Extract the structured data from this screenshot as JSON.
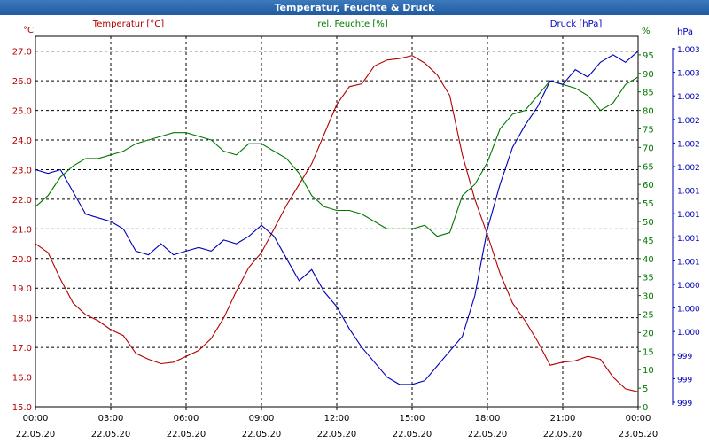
{
  "window": {
    "title": "Temperatur, Feuchte & Druck"
  },
  "colors": {
    "temperature": "#b40000",
    "humidity": "#007800",
    "pressure": "#0000b4",
    "grid": "#000000"
  },
  "chart_data": {
    "type": "line",
    "title": "Temperatur, Feuchte & Druck",
    "x_ticks": [
      {
        "time": "00:00",
        "date": "22.05.20"
      },
      {
        "time": "03:00",
        "date": "22.05.20"
      },
      {
        "time": "06:00",
        "date": "22.05.20"
      },
      {
        "time": "09:00",
        "date": "22.05.20"
      },
      {
        "time": "12:00",
        "date": "22.05.20"
      },
      {
        "time": "15:00",
        "date": "22.05.20"
      },
      {
        "time": "18:00",
        "date": "22.05.20"
      },
      {
        "time": "21:00",
        "date": "22.05.20"
      },
      {
        "time": "00:00",
        "date": "23.05.20"
      }
    ],
    "xlim_hours": [
      0,
      24
    ],
    "axes": {
      "temperature": {
        "label": "Temperatur [°C]",
        "unit": "°C",
        "ylim": [
          15.0,
          27.5
        ],
        "ticks": [
          "15.0",
          "16.0",
          "17.0",
          "18.0",
          "19.0",
          "20.0",
          "21.0",
          "22.0",
          "23.0",
          "24.0",
          "25.0",
          "26.0",
          "27.0"
        ]
      },
      "humidity": {
        "label": "rel. Feuchte [%]",
        "unit": "%",
        "ylim": [
          0,
          100
        ],
        "ticks": [
          "0",
          "5",
          "10",
          "15",
          "20",
          "25",
          "30",
          "35",
          "40",
          "45",
          "50",
          "55",
          "60",
          "65",
          "70",
          "75",
          "80",
          "85",
          "90",
          "95"
        ]
      },
      "pressure": {
        "label": "Druck [hPa]",
        "unit": "hPa",
        "ticks": [
          "999",
          "999",
          "999",
          "1.000",
          "1.000",
          "1.000",
          "1.001",
          "1.001",
          "1.001",
          "1.001",
          "1.002",
          "1.002",
          "1.002",
          "1.002",
          "1.003",
          "1.003"
        ]
      }
    },
    "series": [
      {
        "name": "Temperatur",
        "axis": "temperature",
        "points": [
          [
            0,
            20.5
          ],
          [
            0.5,
            20.2
          ],
          [
            1,
            19.3
          ],
          [
            1.5,
            18.5
          ],
          [
            2,
            18.1
          ],
          [
            2.5,
            17.9
          ],
          [
            3,
            17.6
          ],
          [
            3.5,
            17.4
          ],
          [
            4,
            16.8
          ],
          [
            4.5,
            16.6
          ],
          [
            5,
            16.45
          ],
          [
            5.5,
            16.5
          ],
          [
            6,
            16.7
          ],
          [
            6.5,
            16.9
          ],
          [
            7,
            17.3
          ],
          [
            7.5,
            18.0
          ],
          [
            8,
            18.9
          ],
          [
            8.5,
            19.7
          ],
          [
            9,
            20.2
          ],
          [
            9.5,
            21.0
          ],
          [
            10,
            21.8
          ],
          [
            10.5,
            22.5
          ],
          [
            11,
            23.2
          ],
          [
            11.5,
            24.2
          ],
          [
            12,
            25.2
          ],
          [
            12.5,
            25.8
          ],
          [
            13,
            25.9
          ],
          [
            13.5,
            26.5
          ],
          [
            14,
            26.7
          ],
          [
            14.5,
            26.75
          ],
          [
            15,
            26.85
          ],
          [
            15.5,
            26.6
          ],
          [
            16,
            26.2
          ],
          [
            16.5,
            25.5
          ],
          [
            17,
            23.5
          ],
          [
            17.5,
            22.0
          ],
          [
            18,
            20.8
          ],
          [
            18.5,
            19.5
          ],
          [
            19,
            18.5
          ],
          [
            19.5,
            17.9
          ],
          [
            20,
            17.2
          ],
          [
            20.5,
            16.4
          ],
          [
            21,
            16.5
          ],
          [
            21.5,
            16.55
          ],
          [
            22,
            16.7
          ],
          [
            22.5,
            16.6
          ],
          [
            23,
            16.0
          ],
          [
            23.5,
            15.6
          ],
          [
            24,
            15.5
          ]
        ]
      },
      {
        "name": "rel. Feuchte",
        "axis": "humidity",
        "points": [
          [
            0,
            54
          ],
          [
            0.5,
            57
          ],
          [
            1,
            62
          ],
          [
            1.5,
            65
          ],
          [
            2,
            67
          ],
          [
            2.5,
            67
          ],
          [
            3,
            68
          ],
          [
            3.5,
            69
          ],
          [
            4,
            71
          ],
          [
            4.5,
            72
          ],
          [
            5,
            73
          ],
          [
            5.5,
            74
          ],
          [
            6,
            74
          ],
          [
            6.5,
            73
          ],
          [
            7,
            72
          ],
          [
            7.5,
            69
          ],
          [
            8,
            68
          ],
          [
            8.5,
            71
          ],
          [
            9,
            71
          ],
          [
            9.5,
            69
          ],
          [
            10,
            67
          ],
          [
            10.5,
            63
          ],
          [
            11,
            57
          ],
          [
            11.5,
            54
          ],
          [
            12,
            53
          ],
          [
            12.5,
            53
          ],
          [
            13,
            52
          ],
          [
            13.5,
            50
          ],
          [
            14,
            48
          ],
          [
            14.5,
            48
          ],
          [
            15,
            48
          ],
          [
            15.5,
            49
          ],
          [
            16,
            46
          ],
          [
            16.5,
            47
          ],
          [
            17,
            57
          ],
          [
            17.5,
            60
          ],
          [
            18,
            66
          ],
          [
            18.5,
            75
          ],
          [
            19,
            79
          ],
          [
            19.5,
            80
          ],
          [
            20,
            84
          ],
          [
            20.5,
            88
          ],
          [
            21,
            87
          ],
          [
            21.5,
            86
          ],
          [
            22,
            84
          ],
          [
            22.5,
            80
          ],
          [
            23,
            82
          ],
          [
            23.5,
            87
          ],
          [
            24,
            89
          ]
        ]
      },
      {
        "name": "Druck",
        "axis": "pressure",
        "points": [
          [
            0,
            64
          ],
          [
            0.5,
            63
          ],
          [
            1,
            64
          ],
          [
            1.5,
            58
          ],
          [
            2,
            52
          ],
          [
            2.5,
            51
          ],
          [
            3,
            50
          ],
          [
            3.5,
            48
          ],
          [
            4,
            42
          ],
          [
            4.5,
            41
          ],
          [
            5,
            44
          ],
          [
            5.5,
            41
          ],
          [
            6,
            42
          ],
          [
            6.5,
            43
          ],
          [
            7,
            42
          ],
          [
            7.5,
            45
          ],
          [
            8,
            44
          ],
          [
            8.5,
            46
          ],
          [
            9,
            49
          ],
          [
            9.5,
            46
          ],
          [
            10,
            40
          ],
          [
            10.5,
            34
          ],
          [
            11,
            37
          ],
          [
            11.5,
            31
          ],
          [
            12,
            27
          ],
          [
            12.5,
            21
          ],
          [
            13,
            16
          ],
          [
            13.5,
            12
          ],
          [
            14,
            8
          ],
          [
            14.5,
            6
          ],
          [
            15,
            6
          ],
          [
            15.5,
            7
          ],
          [
            16,
            11
          ],
          [
            16.5,
            15
          ],
          [
            17,
            19
          ],
          [
            17.5,
            30
          ],
          [
            18,
            48
          ],
          [
            18.5,
            60
          ],
          [
            19,
            70
          ],
          [
            19.5,
            76
          ],
          [
            20,
            81
          ],
          [
            20.5,
            88
          ],
          [
            21,
            87
          ],
          [
            21.5,
            91
          ],
          [
            22,
            89
          ],
          [
            22.5,
            93
          ],
          [
            23,
            95
          ],
          [
            23.5,
            93
          ],
          [
            24,
            96
          ]
        ]
      }
    ]
  }
}
